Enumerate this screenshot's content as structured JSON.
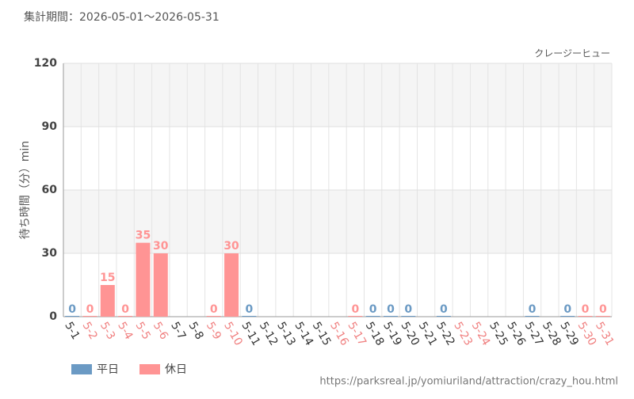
{
  "header": "集計期間：2026-05-01～2026-05-31",
  "footer_url": "https://parksreal.jp/yomiuriland/attraction/crazy_hou.html",
  "chart_data": {
    "type": "bar",
    "annotation": "クレージーヒュー",
    "y_label": "待ち時間（分）min",
    "categories": [
      "5-1",
      "5-2",
      "5-3",
      "5-4",
      "5-5",
      "5-6",
      "5-7",
      "5-8",
      "5-9",
      "5-10",
      "5-11",
      "5-12",
      "5-13",
      "5-14",
      "5-15",
      "5-16",
      "5-17",
      "5-18",
      "5-19",
      "5-20",
      "5-21",
      "5-22",
      "5-23",
      "5-24",
      "5-25",
      "5-26",
      "5-27",
      "5-28",
      "5-29",
      "5-30",
      "5-31"
    ],
    "category_colors": [
      "#333",
      "#f08080",
      "#f08080",
      "#f08080",
      "#f08080",
      "#f08080",
      "#333",
      "#333",
      "#f08080",
      "#f08080",
      "#333",
      "#333",
      "#333",
      "#333",
      "#333",
      "#f08080",
      "#f08080",
      "#333",
      "#333",
      "#333",
      "#333",
      "#333",
      "#f08080",
      "#f08080",
      "#333",
      "#333",
      "#333",
      "#333",
      "#333",
      "#f08080",
      "#f08080"
    ],
    "series": [
      {
        "name": "平日",
        "color": "#6b9ac4",
        "values": [
          0,
          null,
          null,
          null,
          null,
          null,
          null,
          null,
          null,
          null,
          0,
          null,
          null,
          null,
          null,
          null,
          null,
          0,
          0,
          0,
          null,
          0,
          null,
          null,
          null,
          null,
          0,
          null,
          0,
          null,
          null
        ]
      },
      {
        "name": "休日",
        "color": "#ff9494",
        "values": [
          null,
          0,
          15,
          0,
          35,
          30,
          null,
          null,
          0,
          30,
          null,
          null,
          null,
          null,
          null,
          null,
          0,
          null,
          null,
          null,
          null,
          null,
          null,
          null,
          null,
          null,
          null,
          null,
          null,
          0,
          0
        ]
      }
    ],
    "ylim": [
      0,
      120
    ],
    "yticks": [
      0,
      30,
      60,
      90,
      120
    ],
    "grid": true
  }
}
